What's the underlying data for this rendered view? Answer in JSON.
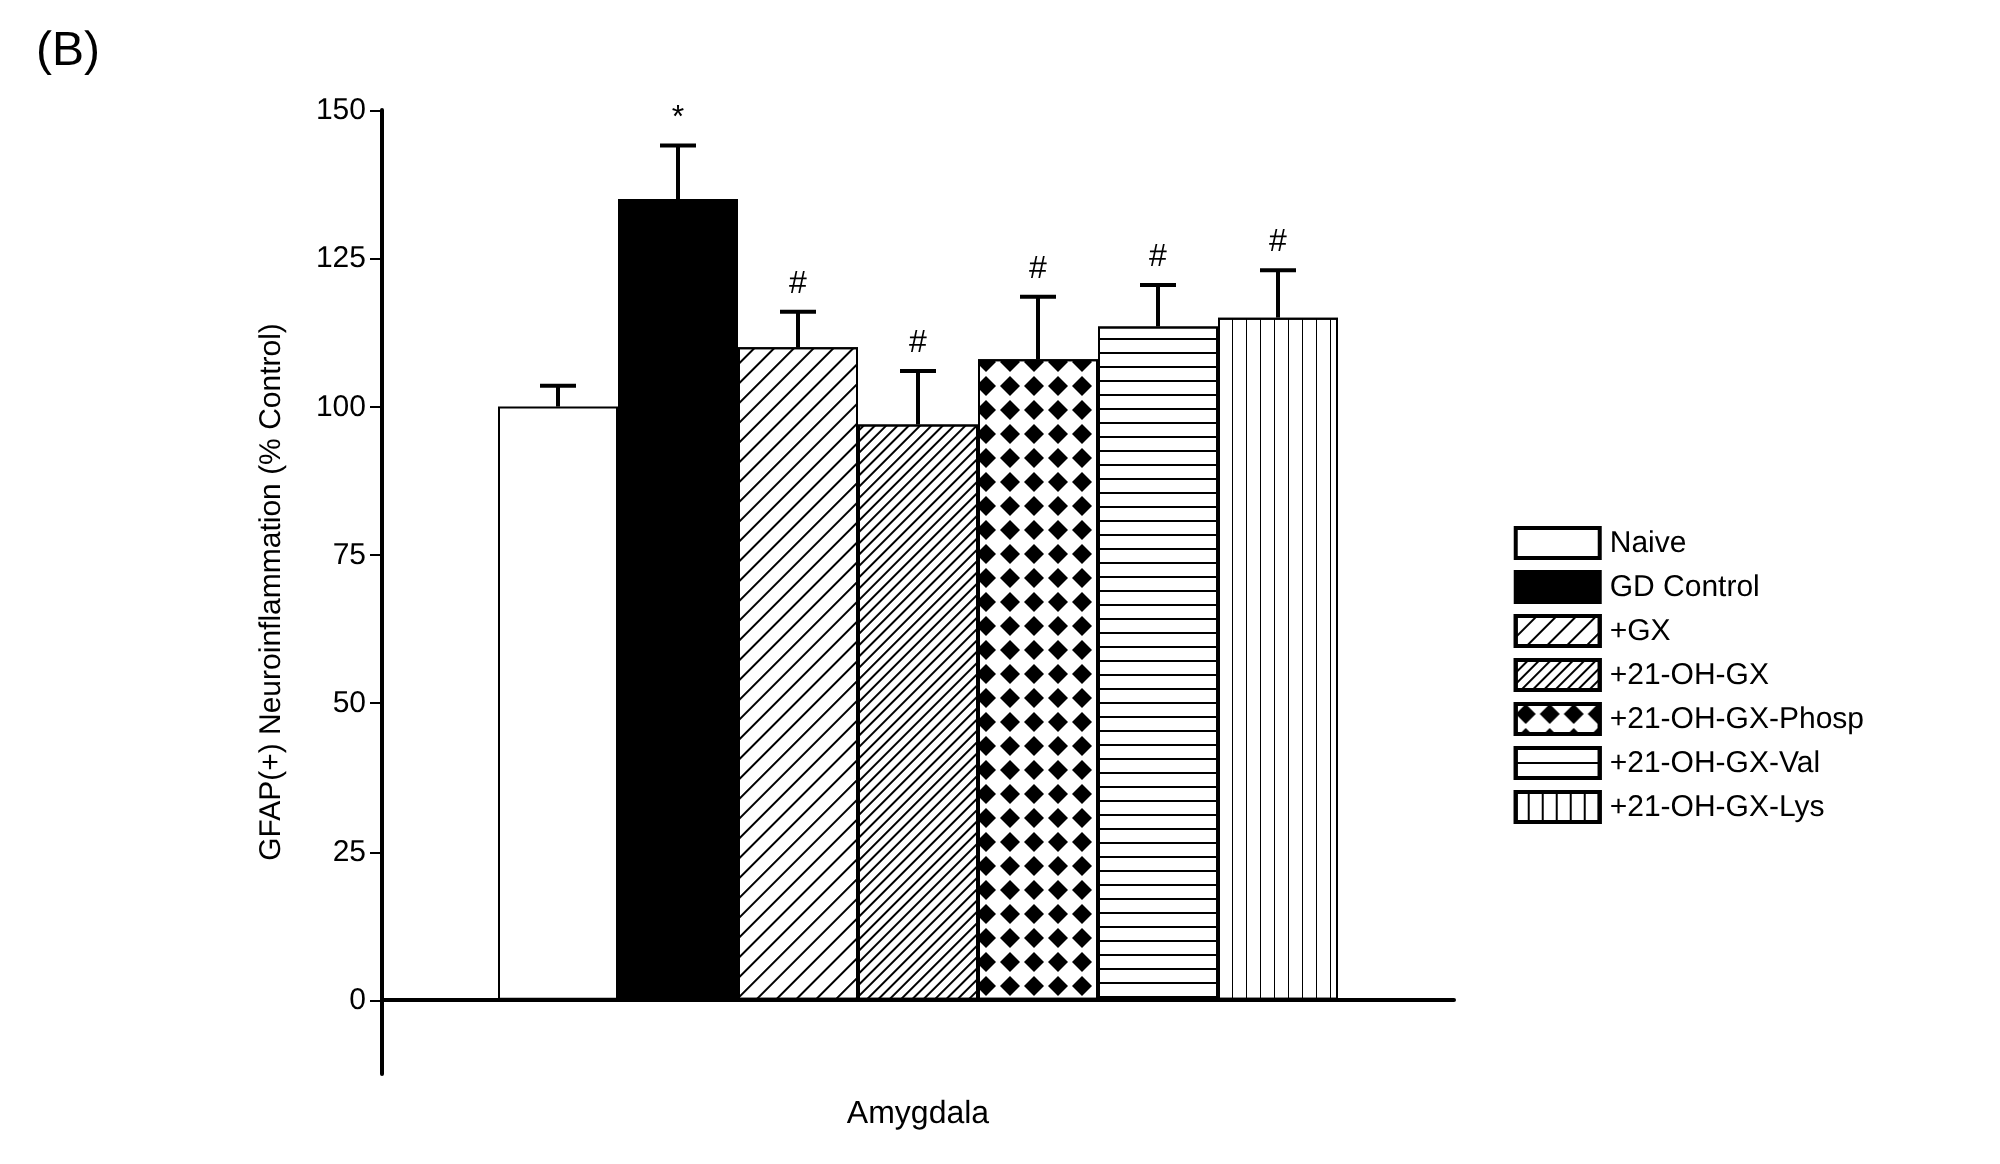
{
  "chart_data": {
    "type": "bar",
    "title": "(B)",
    "ylabel": "GFAP(+) Neuroinflammation (% Control)",
    "categories": [
      "Amygdala"
    ],
    "series": [
      {
        "name": "Naive",
        "color": "#ffffff",
        "values": [
          100
        ],
        "errors": [
          [
            100,
            103.5
          ]
        ]
      },
      {
        "name": "GD Control",
        "color": "#000000",
        "values": [
          135
        ],
        "errors": [
          [
            135,
            144
          ]
        ]
      },
      {
        "name": "+GX",
        "color": "#ffffff",
        "values": [
          110
        ],
        "errors": [
          [
            110,
            116
          ]
        ]
      },
      {
        "name": "+21-OH-GX",
        "color": "#ffffff",
        "values": [
          97
        ],
        "errors": [
          [
            97,
            106
          ]
        ]
      },
      {
        "name": "+21-OH-GX-Phosp",
        "color": "#ffffff",
        "values": [
          108
        ],
        "errors": [
          [
            108,
            118.5
          ]
        ]
      },
      {
        "name": "+21-OH-GX-Val",
        "color": "#ffffff",
        "values": [
          113.5
        ],
        "errors": [
          [
            113.5,
            120.5
          ]
        ]
      },
      {
        "name": "+21-OH-GX-Lys",
        "color": "#ffffff",
        "values": [
          115
        ],
        "errors": [
          [
            115,
            123
          ]
        ]
      }
    ],
    "annotations": [
      "*",
      "#",
      "#",
      "#",
      "#",
      "#"
    ],
    "ylim": [
      -12.5,
      150
    ],
    "yticks": [
      0,
      25,
      50,
      75,
      100,
      125,
      150
    ],
    "legend": "right"
  }
}
